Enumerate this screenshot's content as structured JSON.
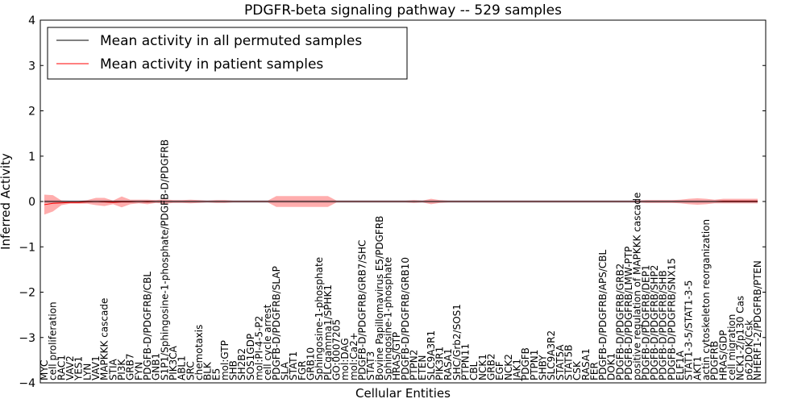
{
  "chart_data": {
    "type": "line",
    "title": "PDGFR-beta signaling pathway -- 529 samples",
    "xlabel": "Cellular Entities",
    "ylabel": "Inferred Activity",
    "ylim": [
      -4,
      4
    ],
    "yticks": [
      -4,
      -3,
      -2,
      -1,
      0,
      1,
      2,
      3,
      4
    ],
    "yticklabels": [
      "−4",
      "−3",
      "−2",
      "−1",
      "0",
      "1",
      "2",
      "3",
      "4"
    ],
    "grid": false,
    "legend": {
      "position": "top-left",
      "entries": [
        {
          "label": "Mean activity in all permuted samples",
          "color": "#000000"
        },
        {
          "label": "Mean activity in patient samples",
          "color": "#ff0000"
        }
      ]
    },
    "categories": [
      "MYC",
      "cell proliferation",
      "RAC1",
      "VAV2",
      "YES1",
      "LYN",
      "VAV1",
      "MAPKKK cascade",
      "STIA",
      "PI3K",
      "GRB7",
      "FYN",
      "PDGFB-D/PDGFRB/CBL",
      "GNB1",
      "S1P1/Sphingosine-1-phosphate/PDGFB-D/PDGFRB",
      "PIK3CA",
      "ABL1",
      "SRC",
      "chemotaxis",
      "BLK",
      "E5",
      "mol:GTP",
      "SHB",
      "SH2B2",
      "SOS1GDP",
      "mol:PI-4-5-P2",
      "cell cycle arrest",
      "PDGFB-D/PDGFRB/SLAP",
      "SLA",
      "STAT1",
      "FGR",
      "GRB10",
      "Sphingosine-1-phosphate",
      "PLCgamma1/SPHK1",
      "GO:0007205",
      "mol:DAG",
      "mol:Ca2+",
      "PDGFB-D/PDGFRB/GRB7/SHC",
      "STAT3",
      "Bovine Papillomavirus E5/PDGFRB",
      "Sphingosine-1-phosphate",
      "HRAS/GTP",
      "PDGFB-D/PDGFRB/GRB10",
      "PTPN2",
      "ETEN",
      "SLC9A3R1",
      "PIK3R1",
      "RASA1",
      "SHC/Grb2/SOS1",
      "PTPN11",
      "CBL",
      "NCK1",
      "GRB2",
      "EGF",
      "NCK2",
      "JAK1",
      "PDGFB",
      "PTPN1",
      "SHBY",
      "SLC9A3R2",
      "STAT5A",
      "STAT5B",
      "CSK",
      "RASA1",
      "FER",
      "PDGFB-D/PDGFRB/APS/CBL",
      "DOK1",
      "PDGFB-D/PDGFRB/GRB2",
      "PDGFB-D/PDGFRB/LMW-PTP",
      "positive regulation of MAPKKK cascade",
      "PDGFB-D/PDGFRB/DEP1",
      "PDGFB-D/PDGFRB/SHP2",
      "PDGFB-D/PDGFRB/SHB",
      "PDGFB-D/PDGFRB/SNX15",
      "ELF1A",
      "STAT1-3-5/STAT1-3-5",
      "AKT1",
      "actin cytoskeleton reorganization",
      "PDGFRB",
      "HRAS/GDP",
      "cell migration",
      "NCK1-2/p130 Cas",
      "p62DOK/Csk",
      "NHERF1-2/PDGFRB/PTEN"
    ],
    "series": [
      {
        "name": "Mean activity in all permuted samples",
        "color": "#000000",
        "values": [
          0,
          0,
          0,
          0,
          0,
          0,
          0,
          0,
          0,
          0,
          0,
          0,
          0,
          0,
          0,
          0,
          0,
          0,
          0,
          0,
          0,
          0,
          0,
          0,
          0,
          0,
          0,
          0,
          0,
          0,
          0,
          0,
          0,
          0,
          0,
          0,
          0,
          0,
          0,
          0,
          0,
          0,
          0,
          0,
          0,
          0,
          0,
          0,
          0,
          0,
          0,
          0,
          0,
          0,
          0,
          0,
          0,
          0,
          0,
          0,
          0,
          0,
          0,
          0,
          0,
          0,
          0,
          0,
          0,
          0,
          0,
          0,
          0,
          0,
          0,
          0,
          0,
          0,
          0,
          0,
          0,
          0,
          0,
          0
        ],
        "band": [
          0.03,
          0.03,
          0.03,
          0.03,
          0.03,
          0.03,
          0.03,
          0.03,
          0.03,
          0.03,
          0.03,
          0.03,
          0.03,
          0.03,
          0.03,
          0.03,
          0.03,
          0.03,
          0.03,
          0.03,
          0.03,
          0.03,
          0.03,
          0.03,
          0.03,
          0.03,
          0.03,
          0.03,
          0.03,
          0.03,
          0.03,
          0.03,
          0.03,
          0.03,
          0.03,
          0.03,
          0.03,
          0.03,
          0.03,
          0.03,
          0.03,
          0.03,
          0.03,
          0.03,
          0.03,
          0.03,
          0.03,
          0.03,
          0.03,
          0.03,
          0.03,
          0.03,
          0.03,
          0.03,
          0.03,
          0.03,
          0.03,
          0.03,
          0.03,
          0.03,
          0.03,
          0.03,
          0.03,
          0.03,
          0.03,
          0.03,
          0.03,
          0.03,
          0.03,
          0.03,
          0.03,
          0.03,
          0.03,
          0.03,
          0.03,
          0.03,
          0.03,
          0.03,
          0.03,
          0.03,
          0.03,
          0.03,
          0.03,
          0.03
        ]
      },
      {
        "name": "Mean activity in patient samples",
        "color": "#ff0000",
        "values": [
          -0.07,
          -0.04,
          -0.03,
          -0.02,
          -0.02,
          -0.01,
          0,
          -0.01,
          -0.02,
          -0.01,
          -0.01,
          0,
          -0.01,
          0,
          0,
          0,
          0,
          0,
          0,
          0,
          0,
          0,
          0,
          0,
          0,
          0,
          0,
          0,
          0,
          0,
          0,
          0,
          0,
          0,
          0,
          0,
          0,
          0,
          0,
          0,
          0,
          0,
          0,
          0,
          0,
          0,
          0,
          0,
          0,
          0,
          0,
          0,
          0,
          0,
          0,
          0,
          0,
          0,
          0,
          0,
          0,
          0,
          0,
          0,
          0,
          0,
          0,
          0,
          0,
          0,
          0,
          0,
          0,
          0,
          0,
          0,
          0,
          0,
          0,
          0.01,
          0.01,
          0.01,
          0.01,
          0.01
        ],
        "band": [
          0.22,
          0.18,
          0.05,
          0.03,
          0.03,
          0.04,
          0.08,
          0.09,
          0.04,
          0.12,
          0.05,
          0.04,
          0.05,
          0.03,
          0.05,
          0.03,
          0.03,
          0.04,
          0.03,
          0.02,
          0.03,
          0.03,
          0.02,
          0.02,
          0.02,
          0.02,
          0.02,
          0.12,
          0.12,
          0.12,
          0.12,
          0.12,
          0.12,
          0.12,
          0.02,
          0.02,
          0.02,
          0.02,
          0.02,
          0.02,
          0.02,
          0.02,
          0.02,
          0.03,
          0.02,
          0.06,
          0.03,
          0.02,
          0.02,
          0.02,
          0.02,
          0.02,
          0.02,
          0.02,
          0.02,
          0.02,
          0.02,
          0.02,
          0.02,
          0.02,
          0.02,
          0.02,
          0.02,
          0.02,
          0.02,
          0.02,
          0.02,
          0.02,
          0.02,
          0.02,
          0.03,
          0.03,
          0.03,
          0.03,
          0.04,
          0.06,
          0.07,
          0.06,
          0.04,
          0.05,
          0.05,
          0.05,
          0.05,
          0.05
        ]
      }
    ]
  }
}
